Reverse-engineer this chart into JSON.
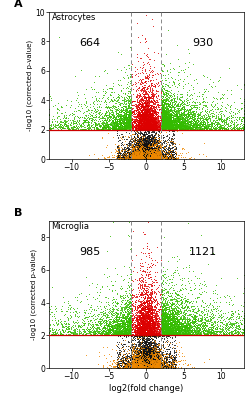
{
  "panels": [
    {
      "label": "A",
      "title": "Astrocytes",
      "count_left": "664",
      "count_right": "930",
      "xlim": [
        -13,
        13
      ],
      "ylim": [
        0,
        10
      ],
      "yticks": [
        0,
        2,
        4,
        6,
        8,
        10
      ],
      "xticks": [
        -10,
        -5,
        0,
        5,
        10
      ],
      "threshold_y": 2.0,
      "vline_positions": [
        -2,
        2
      ],
      "seed": 42,
      "n_points": 15000
    },
    {
      "label": "B",
      "title": "Microglia",
      "count_left": "985",
      "count_right": "1121",
      "xlim": [
        -13,
        13
      ],
      "ylim": [
        0,
        9
      ],
      "yticks": [
        0,
        2,
        4,
        6,
        8
      ],
      "xticks": [
        -10,
        -5,
        0,
        5,
        10
      ],
      "threshold_y": 2.0,
      "vline_positions": [
        -2,
        2
      ],
      "seed": 77,
      "n_points": 15000
    }
  ],
  "xlabel": "log2(fold change)",
  "ylabel": "-log10 (corrected p-value)",
  "color_black": "#111111",
  "color_red": "#dd0000",
  "color_green": "#33bb00",
  "color_orange": "#ee8800",
  "hline_color": "#cc0000",
  "vline_color": "#888888",
  "bg_color": "#ffffff",
  "fig_width": 2.46,
  "fig_height": 4.0,
  "dpi": 100
}
